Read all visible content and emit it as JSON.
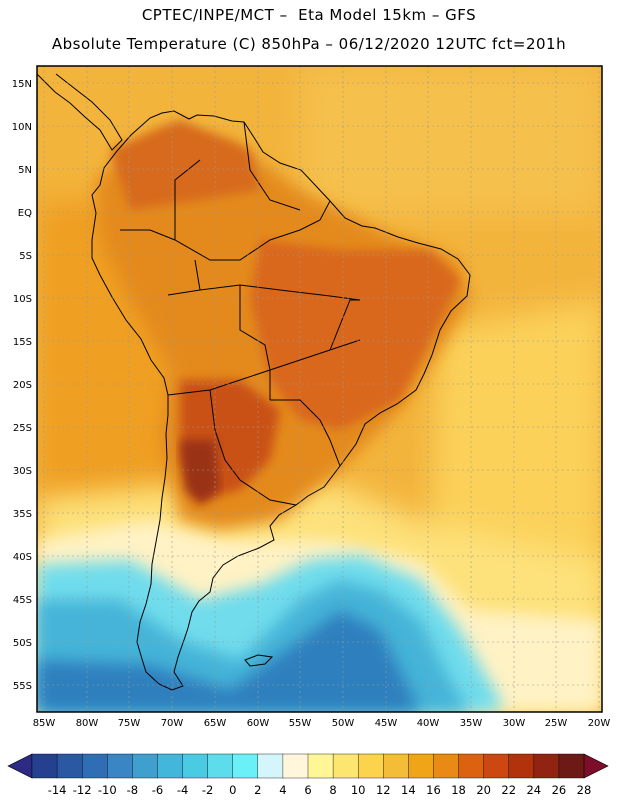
{
  "header": {
    "line1": "CPTEC/INPE/MCT –  Eta Model 15km – GFS",
    "line2": "Absolute Temperature (C) 850hPa – 06/12/2020 12UTC fct=201h"
  },
  "map": {
    "lat_labels": [
      "15N",
      "10N",
      "5N",
      "EQ",
      "5S",
      "10S",
      "15S",
      "20S",
      "25S",
      "30S",
      "35S",
      "40S",
      "45S",
      "50S",
      "55S"
    ],
    "lon_labels": [
      "85W",
      "80W",
      "75W",
      "70W",
      "65W",
      "60W",
      "55W",
      "50W",
      "45W",
      "40W",
      "35W",
      "30W",
      "25W",
      "20W"
    ]
  },
  "colorbar": {
    "labels": [
      "-14",
      "-12",
      "-10",
      "-8",
      "-6",
      "-4",
      "-2",
      "0",
      "2",
      "4",
      "6",
      "8",
      "10",
      "12",
      "14",
      "16",
      "18",
      "20",
      "22",
      "24",
      "26",
      "28"
    ],
    "colors": [
      "#25408f",
      "#2a58a3",
      "#2f6eb4",
      "#3a85c3",
      "#3f9fcf",
      "#43b6dc",
      "#4acbe4",
      "#5ddcec",
      "#6af1f8",
      "#d4f5fa",
      "#fff6dc",
      "#fff696",
      "#fde670",
      "#fcd44c",
      "#f3bd38",
      "#f0a418",
      "#e88a15",
      "#dd6210",
      "#cc4810",
      "#b2320b",
      "#912311",
      "#6d1a16"
    ],
    "overflow_low_color": "#2c2a85",
    "overflow_high_color": "#7d0e2a"
  }
}
